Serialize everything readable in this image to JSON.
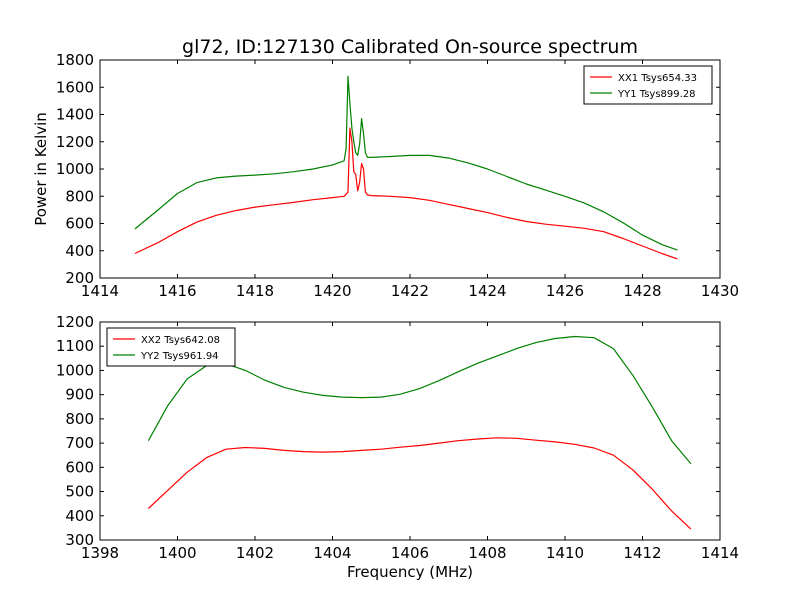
{
  "title": "gl72, ID:127130 Calibrated On-source spectrum",
  "chart_data": [
    {
      "type": "line",
      "title": "gl72, ID:127130 Calibrated On-source spectrum",
      "xlabel": "",
      "ylabel": "Power in Kelvin",
      "xlim": [
        1414,
        1430
      ],
      "ylim": [
        200,
        1800
      ],
      "xticks": [
        "1414",
        "1416",
        "1418",
        "1420",
        "1422",
        "1424",
        "1426",
        "1428",
        "1430"
      ],
      "yticks": [
        "200",
        "400",
        "600",
        "800",
        "1000",
        "1200",
        "1400",
        "1600",
        "1800"
      ],
      "grid": false,
      "legend_position": "top-right",
      "series": [
        {
          "name": "XX1 Tsys654.33",
          "color": "#ff0000",
          "x": [
            1414.9,
            1415.5,
            1416,
            1416.5,
            1417,
            1417.5,
            1418,
            1418.5,
            1419,
            1419.5,
            1420,
            1420.3,
            1420.4,
            1420.45,
            1420.5,
            1420.55,
            1420.6,
            1420.65,
            1420.7,
            1420.75,
            1420.8,
            1420.85,
            1420.9,
            1421,
            1421.5,
            1422,
            1422.5,
            1423,
            1423.5,
            1424,
            1424.5,
            1425,
            1425.5,
            1426,
            1426.5,
            1427,
            1427.5,
            1428,
            1428.5,
            1428.9
          ],
          "y": [
            380,
            460,
            540,
            610,
            660,
            695,
            720,
            738,
            755,
            775,
            790,
            800,
            830,
            1300,
            1200,
            980,
            960,
            840,
            900,
            1040,
            1000,
            830,
            810,
            805,
            800,
            790,
            770,
            740,
            710,
            680,
            645,
            615,
            595,
            580,
            565,
            540,
            490,
            435,
            380,
            340
          ]
        },
        {
          "name": "YY1 Tsys899.28",
          "color": "#008000",
          "x": [
            1414.9,
            1415.5,
            1416,
            1416.5,
            1417,
            1417.5,
            1418,
            1418.5,
            1419,
            1419.5,
            1420,
            1420.3,
            1420.35,
            1420.4,
            1420.45,
            1420.5,
            1420.55,
            1420.6,
            1420.65,
            1420.7,
            1420.75,
            1420.8,
            1420.85,
            1420.9,
            1421,
            1421.5,
            1422,
            1422.5,
            1423,
            1423.5,
            1424,
            1424.5,
            1425,
            1425.5,
            1426,
            1426.5,
            1427,
            1427.5,
            1428,
            1428.5,
            1428.9
          ],
          "y": [
            560,
            700,
            820,
            900,
            935,
            948,
            955,
            965,
            980,
            1000,
            1030,
            1060,
            1150,
            1680,
            1480,
            1300,
            1200,
            1120,
            1100,
            1180,
            1370,
            1260,
            1120,
            1085,
            1085,
            1092,
            1100,
            1100,
            1080,
            1045,
            1000,
            945,
            890,
            845,
            800,
            750,
            685,
            605,
            515,
            445,
            405
          ]
        }
      ]
    },
    {
      "type": "line",
      "title": "",
      "xlabel": "Frequency (MHz)",
      "ylabel": "",
      "xlim": [
        1398,
        1414
      ],
      "ylim": [
        300,
        1200
      ],
      "xticks": [
        "1398",
        "1400",
        "1402",
        "1404",
        "1406",
        "1408",
        "1410",
        "1412",
        "1414"
      ],
      "yticks": [
        "300",
        "400",
        "500",
        "600",
        "700",
        "800",
        "900",
        "1000",
        "1100",
        "1200"
      ],
      "grid": false,
      "legend_position": "top-left",
      "series": [
        {
          "name": "XX2 Tsys642.08",
          "color": "#ff0000",
          "x": [
            1399.25,
            1399.75,
            1400.25,
            1400.75,
            1401.25,
            1401.75,
            1402.25,
            1402.75,
            1403.25,
            1403.75,
            1404.25,
            1404.75,
            1405.25,
            1405.75,
            1406.25,
            1406.75,
            1407.25,
            1407.75,
            1408.25,
            1408.75,
            1409.25,
            1409.75,
            1410.25,
            1410.75,
            1411.25,
            1411.75,
            1412.25,
            1412.75,
            1413.25
          ],
          "y": [
            430,
            505,
            580,
            640,
            675,
            682,
            678,
            670,
            665,
            663,
            665,
            670,
            675,
            683,
            690,
            700,
            710,
            717,
            722,
            720,
            712,
            705,
            695,
            680,
            650,
            590,
            510,
            420,
            345
          ]
        },
        {
          "name": "YY2 Tsys961.94",
          "color": "#008000",
          "x": [
            1399.25,
            1399.75,
            1400.25,
            1400.75,
            1401.25,
            1401.75,
            1402.25,
            1402.75,
            1403.25,
            1403.75,
            1404.25,
            1404.75,
            1405.25,
            1405.75,
            1406.25,
            1406.75,
            1407.25,
            1407.75,
            1408.25,
            1408.75,
            1409.25,
            1409.75,
            1410.25,
            1410.75,
            1411.25,
            1411.75,
            1412.25,
            1412.75,
            1413.25
          ],
          "y": [
            710,
            855,
            965,
            1020,
            1028,
            1000,
            960,
            930,
            910,
            897,
            890,
            888,
            890,
            902,
            925,
            958,
            995,
            1030,
            1060,
            1090,
            1115,
            1132,
            1140,
            1135,
            1090,
            980,
            850,
            710,
            615
          ]
        }
      ]
    }
  ]
}
